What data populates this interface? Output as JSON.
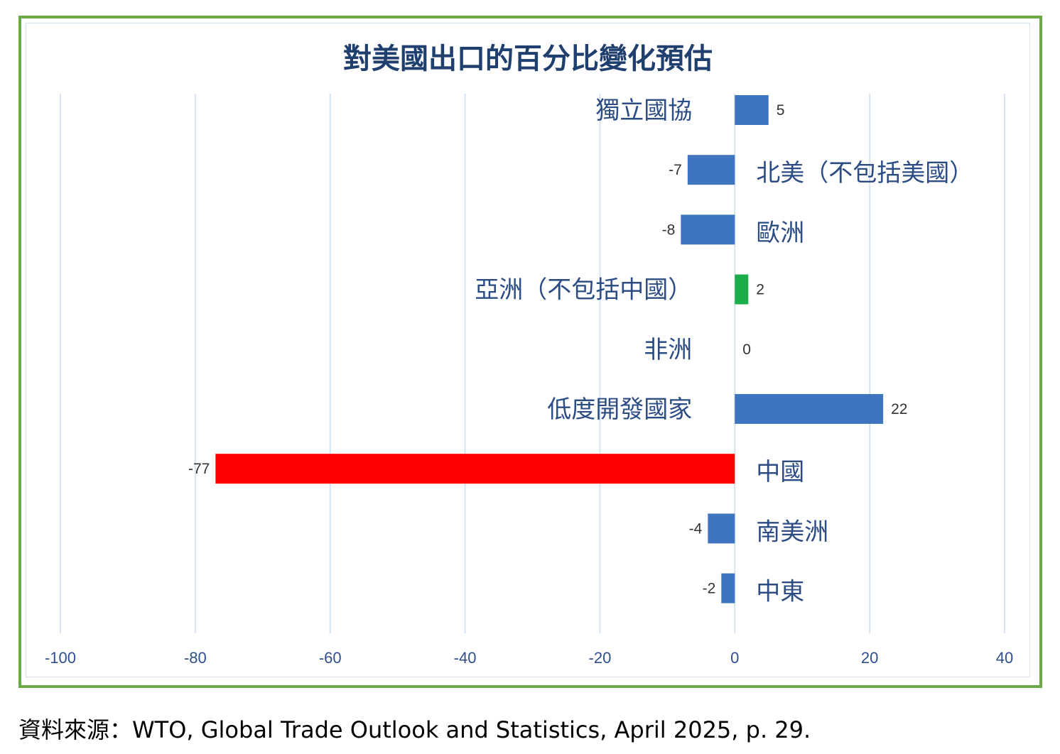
{
  "chart_data": {
    "type": "bar",
    "orientation": "horizontal",
    "title": "對美國出口的百分比變化預估",
    "categories": [
      "獨立國協",
      "北美（不包括美國）",
      "歐洲",
      "亞洲（不包括中國）",
      "非洲",
      "低度開發國家",
      "中國",
      "南美洲",
      "中東"
    ],
    "values": [
      5,
      -7,
      -8,
      2,
      0,
      22,
      -77,
      -4,
      -2
    ],
    "bar_colors": [
      "#3f74bf",
      "#3f74bf",
      "#3f74bf",
      "#1aad4a",
      "#3f74bf",
      "#3f74bf",
      "#ff0000",
      "#3f74bf",
      "#3f74bf"
    ],
    "data_labels": [
      "5",
      "-7",
      "-8",
      "2",
      "0",
      "22",
      "-77",
      "-4",
      "-2"
    ],
    "xlim": [
      -100,
      40
    ],
    "xticks": [
      -100,
      -80,
      -60,
      -40,
      -20,
      0,
      20,
      40
    ],
    "xtick_labels": [
      "-100",
      "-80",
      "-60",
      "-40",
      "-20",
      "0",
      "20",
      "40"
    ],
    "grid": "vertical",
    "legend": "none",
    "label_color": "#2c4c84",
    "grid_color": "#d5e3f3"
  },
  "source": {
    "prefix": "資料來源：",
    "text": "WTO, Global Trade Outlook and Statistics, April 2025, p. 29."
  },
  "colors": {
    "frame": "#6aaa46"
  }
}
